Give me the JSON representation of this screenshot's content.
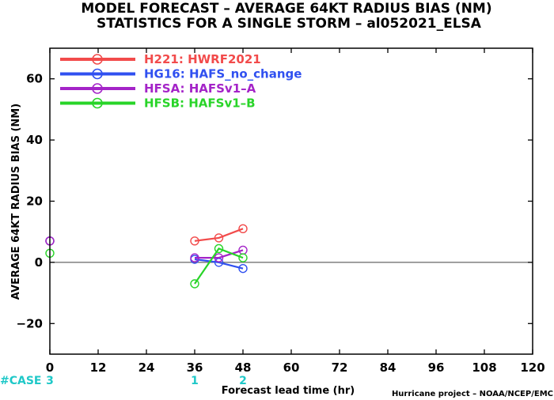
{
  "title_line1": "MODEL FORECAST – AVERAGE 64KT RADIUS BIAS (NM)",
  "title_line2": "STATISTICS FOR A SINGLE STORM – al052021_ELSA",
  "credit": "Hurricane project – NOAA/NCEP/EMC",
  "colors": {
    "case": "#1fc8c8",
    "zero_line": "#666666"
  },
  "chart_data": {
    "type": "line",
    "title": "MODEL FORECAST – AVERAGE 64KT RADIUS BIAS (NM)",
    "subtitle": "STATISTICS FOR A SINGLE STORM – al052021_ELSA",
    "xlabel": "Forecast lead time (hr)",
    "ylabel": "AVERAGE 64KT RADIUS BIAS (NM)",
    "xlim": [
      0,
      120
    ],
    "ylim": [
      -30,
      70
    ],
    "xticks": [
      0,
      12,
      24,
      36,
      48,
      60,
      72,
      84,
      96,
      108,
      120
    ],
    "yticks": [
      -20,
      0,
      20,
      40,
      60
    ],
    "zero_line": 0,
    "legend_position": "top-left",
    "series": [
      {
        "name": "H221: HWRF2021",
        "color": "#f24b4b",
        "x": [
          0,
          36,
          42,
          48
        ],
        "y": [
          7,
          7,
          8,
          11
        ]
      },
      {
        "name": "HG16: HAFS_no_change",
        "color": "#3050f0",
        "x": [
          0,
          36,
          42,
          48
        ],
        "y": [
          7,
          1,
          0,
          -2
        ]
      },
      {
        "name": "HFSA: HAFSv1–A",
        "color": "#a424c8",
        "x": [
          0,
          36,
          42,
          48
        ],
        "y": [
          7,
          1.5,
          1.5,
          4
        ]
      },
      {
        "name": "HFSB: HAFSv1–B",
        "color": "#28d428",
        "x": [
          0,
          36,
          42,
          48
        ],
        "y": [
          3,
          -7,
          4.5,
          1.5
        ]
      }
    ],
    "cases": {
      "label": "#CASE",
      "x": [
        0,
        36,
        48
      ],
      "values": [
        "3",
        "1",
        "2"
      ]
    }
  }
}
